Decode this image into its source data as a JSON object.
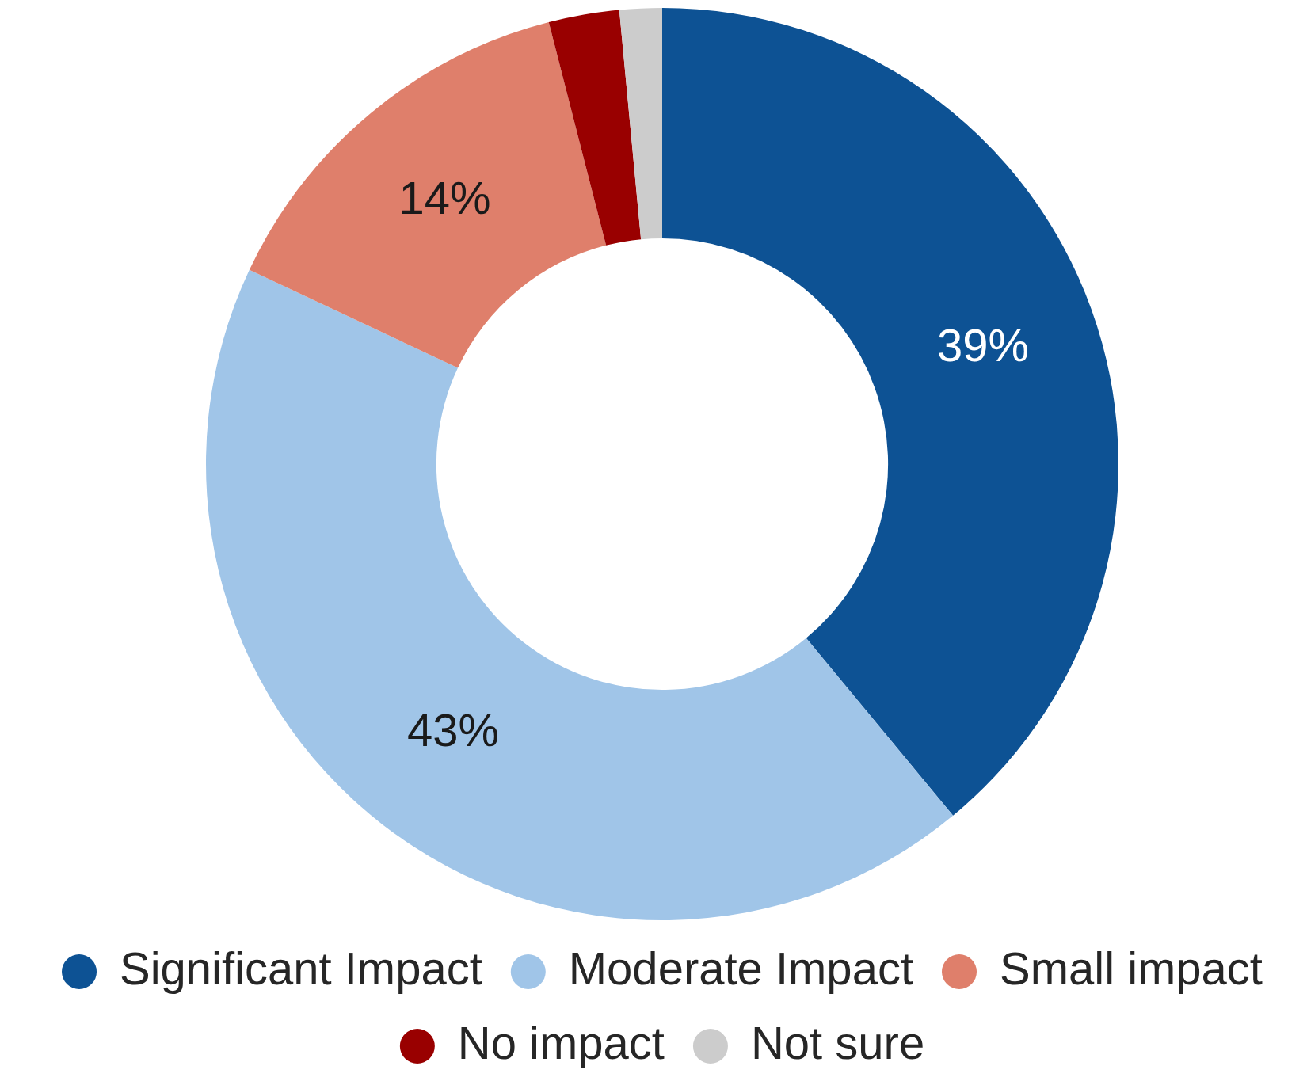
{
  "chart_data": {
    "type": "donut",
    "categories": [
      "Significant Impact",
      "Moderate Impact",
      "Small impact",
      "No impact",
      "Not sure"
    ],
    "values": [
      39,
      43,
      14,
      2.5,
      1.5
    ],
    "colors": [
      "#0d5294",
      "#a0c5e8",
      "#df7f6b",
      "#990000",
      "#cccccc"
    ],
    "value_labels": [
      "39%",
      "43%",
      "14%",
      null,
      null
    ],
    "legend": "bottom"
  }
}
